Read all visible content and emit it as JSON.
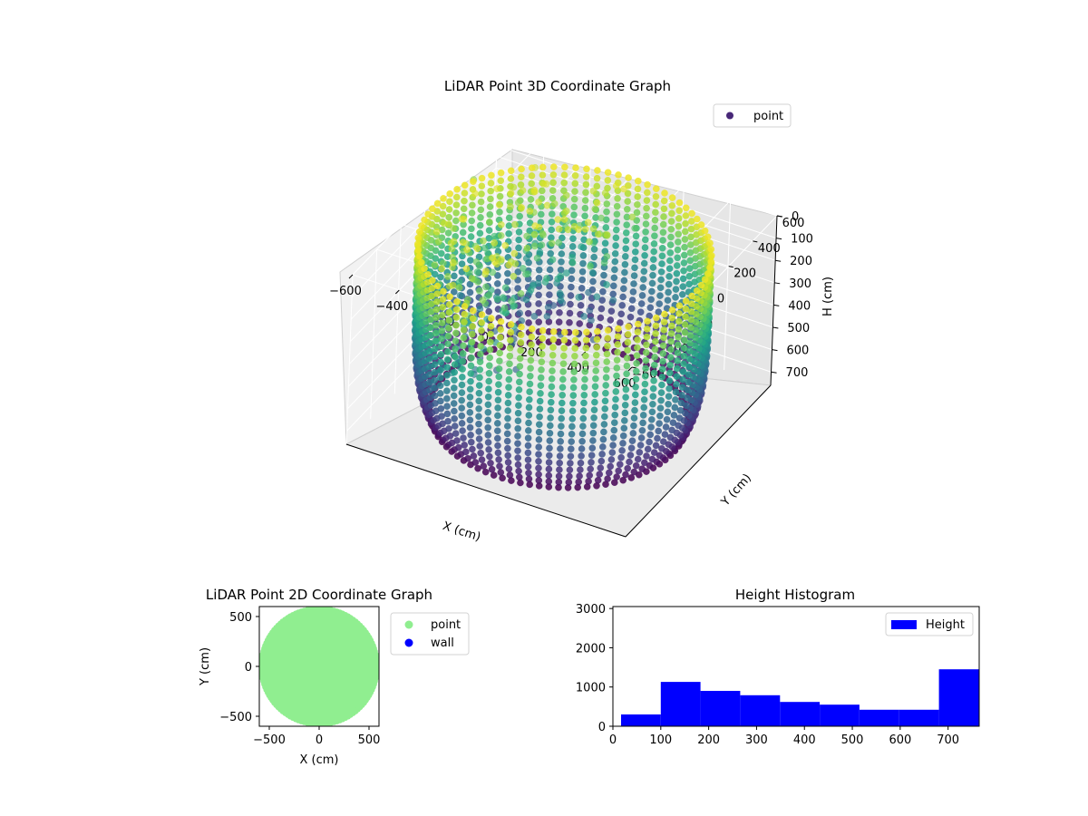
{
  "colors": {
    "point2d": "#90ee90",
    "wall": "#0000ff",
    "histogram": "#0000ff",
    "viridis": [
      "#440154",
      "#482878",
      "#3e4a89",
      "#31688e",
      "#26828e",
      "#1f9e89",
      "#35b779",
      "#6ece58",
      "#b5de2b",
      "#fde725"
    ]
  },
  "chart_data": [
    {
      "type": "scatter",
      "projection": "3d",
      "title": "LiDAR Point 3D Coordinate Graph",
      "xlabel": "X (cm)",
      "ylabel": "Y (cm)",
      "zlabel": "H (cm)",
      "xlim": [
        -600,
        600
      ],
      "ylim": [
        -600,
        600
      ],
      "zlim": [
        0,
        760
      ],
      "z_inverted": true,
      "xticks": [
        -600,
        -400,
        -200,
        0,
        200,
        400,
        600
      ],
      "yticks": [
        -600,
        -400,
        -200,
        0,
        200,
        400,
        600
      ],
      "zticks": [
        0,
        100,
        200,
        300,
        400,
        500,
        600,
        700
      ],
      "xtick_labels": [
        "−600",
        "−400",
        "−200",
        "0",
        "200",
        "400",
        "600"
      ],
      "ytick_labels": [
        "−600",
        "−400",
        "−200",
        "0",
        "200",
        "400",
        "600"
      ],
      "ztick_labels": [
        "0",
        "100",
        "200",
        "300",
        "400",
        "500",
        "600",
        "700"
      ],
      "colormap": "viridis",
      "legend": [
        "point"
      ],
      "legend_position": "upper right",
      "grid": true,
      "shape": "cylindrical wall of points, radius about 560 cm, heights 20–760 cm, with scattered interior points in the back-left",
      "wall_radius": 560,
      "height_range": [
        20,
        760
      ],
      "outliers": [
        {
          "x": -590,
          "y": 390,
          "h": 130
        },
        {
          "x": -380,
          "y": 490,
          "h": 60
        },
        {
          "x": -420,
          "y": 120,
          "h": 520
        },
        {
          "x": -560,
          "y": 30,
          "h": 420
        }
      ]
    },
    {
      "type": "scatter",
      "title": "LiDAR Point 2D Coordinate Graph",
      "xlabel": "X (cm)",
      "ylabel": "Y (cm)",
      "xlim": [
        -600,
        600
      ],
      "ylim": [
        -600,
        600
      ],
      "xticks": [
        -500,
        0,
        500
      ],
      "yticks": [
        -500,
        0,
        500
      ],
      "xtick_labels": [
        "−500",
        "0",
        "500"
      ],
      "ytick_labels": [
        "−500",
        "0",
        "500"
      ],
      "legend": [
        "point",
        "wall"
      ],
      "legend_position": "outside right",
      "fill_radius": 580
    },
    {
      "type": "bar",
      "subtype": "histogram",
      "title": "Height Histogram",
      "xlim": [
        0,
        765
      ],
      "ylim": [
        0,
        3050
      ],
      "xticks": [
        0,
        100,
        200,
        300,
        400,
        500,
        600,
        700
      ],
      "yticks": [
        0,
        1000,
        2000,
        3000
      ],
      "bins": [
        {
          "from": 17,
          "to": 100,
          "value": 300
        },
        {
          "from": 100,
          "to": 183,
          "value": 1130
        },
        {
          "from": 183,
          "to": 266,
          "value": 900
        },
        {
          "from": 266,
          "to": 349,
          "value": 790
        },
        {
          "from": 349,
          "to": 432,
          "value": 620
        },
        {
          "from": 432,
          "to": 515,
          "value": 550
        },
        {
          "from": 515,
          "to": 598,
          "value": 420
        },
        {
          "from": 598,
          "to": 681,
          "value": 420
        },
        {
          "from": 681,
          "to": 765,
          "value": 1450
        }
      ],
      "legend": [
        "Height"
      ],
      "legend_position": "upper right"
    }
  ]
}
